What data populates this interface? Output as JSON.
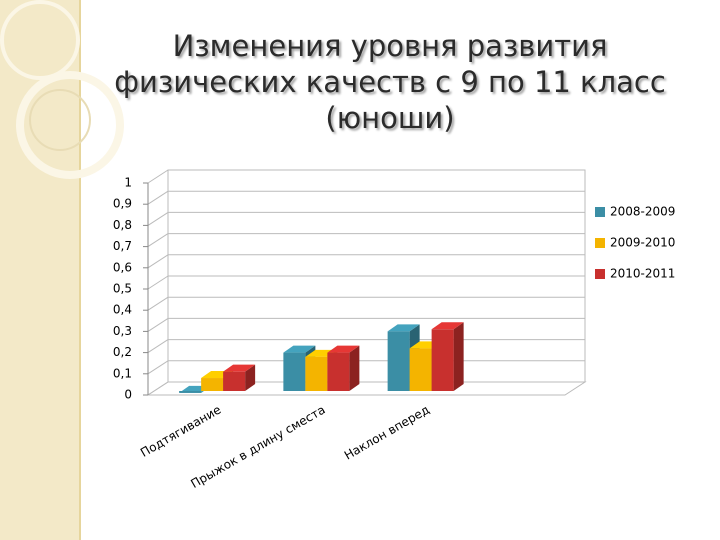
{
  "chart_data": {
    "type": "bar",
    "title": "Изменения уровня развития физических качеств с 9 по 11 класс (юноши)",
    "categories": [
      "Подтягивание",
      "Прыжок в длину сместа",
      "Наклон вперед",
      null
    ],
    "series": [
      {
        "name": "2008-2009",
        "color": "#3b8ea5",
        "values": [
          0.01,
          0.2,
          0.3,
          null
        ]
      },
      {
        "name": "2009-2010",
        "color": "#f4b400",
        "values": [
          0.08,
          0.18,
          0.22,
          null
        ]
      },
      {
        "name": "2010-2011",
        "color": "#c8302e",
        "values": [
          0.11,
          0.2,
          0.31,
          null
        ]
      }
    ],
    "ylim": [
      0,
      1
    ],
    "yticks": [
      0,
      {
        "value": 0.1,
        "label": "0,1"
      },
      {
        "value": 0.2,
        "label": "0,2"
      },
      {
        "value": 0.3,
        "label": "0,3"
      },
      {
        "value": 0.4,
        "label": "0,4"
      },
      {
        "value": 0.5,
        "label": "0,5"
      },
      {
        "value": 0.6,
        "label": "0,6"
      },
      {
        "value": 0.7,
        "label": "0,7"
      },
      {
        "value": 0.8,
        "label": "0,8"
      },
      {
        "value": 0.9,
        "label": "0,9"
      },
      1
    ],
    "grid": true,
    "legend": "right"
  }
}
